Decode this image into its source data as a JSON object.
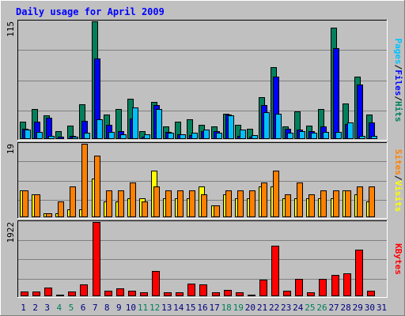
{
  "title": "Daily usage for April 2009",
  "colors": {
    "background": "#c0c0c0",
    "title": "#0000ff",
    "hits": "#00805c",
    "files": "#0000ff",
    "pages": "#00c0ff",
    "visits": "#ffff00",
    "sites": "#ff8000",
    "kbytes": "#ff0000",
    "weekend_day": "#00805c",
    "weekday_day": "#000080"
  },
  "chart_data": [
    {
      "type": "bar",
      "title": "Daily usage for April 2009",
      "panel": "hits_files_pages",
      "ymax_label": "115",
      "ylim": [
        0,
        115
      ],
      "legend": [
        "Pages",
        "Files",
        "Hits"
      ],
      "legend_placement": "right",
      "grid": true,
      "categories": [
        "1",
        "2",
        "3",
        "4",
        "5",
        "6",
        "7",
        "8",
        "9",
        "10",
        "11",
        "12",
        "13",
        "14",
        "15",
        "16",
        "17",
        "18",
        "19",
        "20",
        "21",
        "22",
        "23",
        "24",
        "25",
        "26",
        "27",
        "28",
        "29",
        "30",
        "31"
      ],
      "series": [
        {
          "name": "Hits",
          "values": [
            17,
            29,
            23,
            8,
            13,
            34,
            115,
            24,
            29,
            39,
            8,
            36,
            12,
            17,
            19,
            14,
            12,
            25,
            14,
            10,
            41,
            70,
            12,
            27,
            13,
            29,
            109,
            35,
            61,
            24,
            0
          ]
        },
        {
          "name": "Files",
          "values": [
            10,
            17,
            21,
            2,
            3,
            18,
            79,
            14,
            8,
            20,
            2,
            33,
            7,
            5,
            4,
            8,
            8,
            24,
            3,
            2,
            33,
            61,
            10,
            9,
            8,
            12,
            89,
            15,
            53,
            16,
            0
          ]
        },
        {
          "name": "Pages",
          "values": [
            9,
            7,
            3,
            1,
            2,
            6,
            19,
            7,
            5,
            31,
            5,
            29,
            6,
            5,
            6,
            9,
            6,
            23,
            9,
            4,
            26,
            25,
            6,
            8,
            6,
            7,
            7,
            16,
            3,
            3,
            0
          ]
        }
      ]
    },
    {
      "type": "bar",
      "panel": "visits_sites",
      "ymax_label": "19",
      "ylim": [
        0,
        19
      ],
      "legend": [
        "Sites",
        "Visits"
      ],
      "legend_placement": "right",
      "grid": true,
      "categories": [
        "1",
        "2",
        "3",
        "4",
        "5",
        "6",
        "7",
        "8",
        "9",
        "10",
        "11",
        "12",
        "13",
        "14",
        "15",
        "16",
        "17",
        "18",
        "19",
        "20",
        "21",
        "22",
        "23",
        "24",
        "25",
        "26",
        "27",
        "28",
        "29",
        "30",
        "31"
      ],
      "series": [
        {
          "name": "Visits",
          "values": [
            7,
            6,
            1,
            1,
            2,
            2,
            10,
            4,
            4,
            5,
            5,
            12,
            5,
            5,
            5,
            8,
            3,
            6,
            5,
            5,
            8,
            8,
            5,
            5,
            5,
            5,
            5,
            7,
            6,
            4,
            0
          ]
        },
        {
          "name": "Sites",
          "values": [
            7,
            6,
            1,
            4,
            8,
            19,
            16,
            7,
            7,
            9,
            4,
            8,
            7,
            7,
            7,
            6,
            3,
            7,
            7,
            7,
            9,
            12,
            6,
            9,
            6,
            7,
            7,
            7,
            8,
            8,
            0
          ]
        }
      ]
    },
    {
      "type": "bar",
      "panel": "kbytes",
      "ymax_label": "1922",
      "ylim": [
        0,
        1922
      ],
      "legend": [
        "KBytes"
      ],
      "legend_placement": "right",
      "grid": true,
      "categories": [
        "1",
        "2",
        "3",
        "4",
        "5",
        "6",
        "7",
        "8",
        "9",
        "10",
        "11",
        "12",
        "13",
        "14",
        "15",
        "16",
        "17",
        "18",
        "19",
        "20",
        "21",
        "22",
        "23",
        "24",
        "25",
        "26",
        "27",
        "28",
        "29",
        "30",
        "31"
      ],
      "series": [
        {
          "name": "KBytes",
          "values": [
            120,
            130,
            230,
            50,
            120,
            300,
            1922,
            150,
            200,
            150,
            100,
            650,
            100,
            100,
            320,
            300,
            100,
            160,
            100,
            50,
            420,
            1300,
            150,
            450,
            100,
            450,
            550,
            600,
            1200,
            150,
            0
          ]
        }
      ]
    }
  ],
  "day_labels": [
    "1",
    "2",
    "3",
    "4",
    "5",
    "6",
    "7",
    "8",
    "9",
    "10",
    "11",
    "12",
    "13",
    "14",
    "15",
    "16",
    "17",
    "18",
    "19",
    "20",
    "21",
    "22",
    "23",
    "24",
    "25",
    "26",
    "27",
    "28",
    "29",
    "30",
    "31"
  ],
  "weekend_days": [
    4,
    5,
    11,
    12,
    18,
    19,
    25,
    26
  ]
}
